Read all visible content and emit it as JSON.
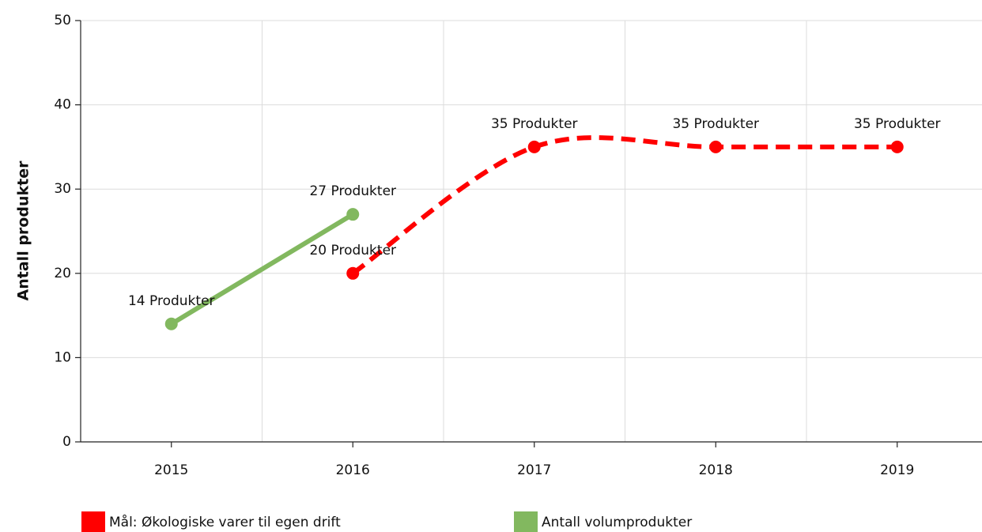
{
  "chart_data": {
    "type": "line",
    "ylabel": "Antall produkter",
    "categories": [
      "2015",
      "2016",
      "2017",
      "2018",
      "2019"
    ],
    "series": [
      {
        "name": "Mål: Økologiske varer til egen drift",
        "color": "#ff0000",
        "dashed": true,
        "smooth": true,
        "values": [
          null,
          20,
          35,
          35,
          35
        ],
        "value_labels": [
          null,
          "20 Produkter",
          "35 Produkter",
          "35 Produkter",
          "35 Produkter"
        ]
      },
      {
        "name": "Antall volumprodukter",
        "color": "#82b85f",
        "dashed": false,
        "smooth": false,
        "values": [
          14,
          27,
          null,
          null,
          null
        ],
        "value_labels": [
          "14 Produkter",
          "27 Produkter",
          null,
          null,
          null
        ]
      }
    ],
    "ylim": [
      0,
      50
    ],
    "yticks": [
      0,
      10,
      20,
      30,
      40,
      50
    ],
    "grid": true,
    "legend": "bottom"
  }
}
